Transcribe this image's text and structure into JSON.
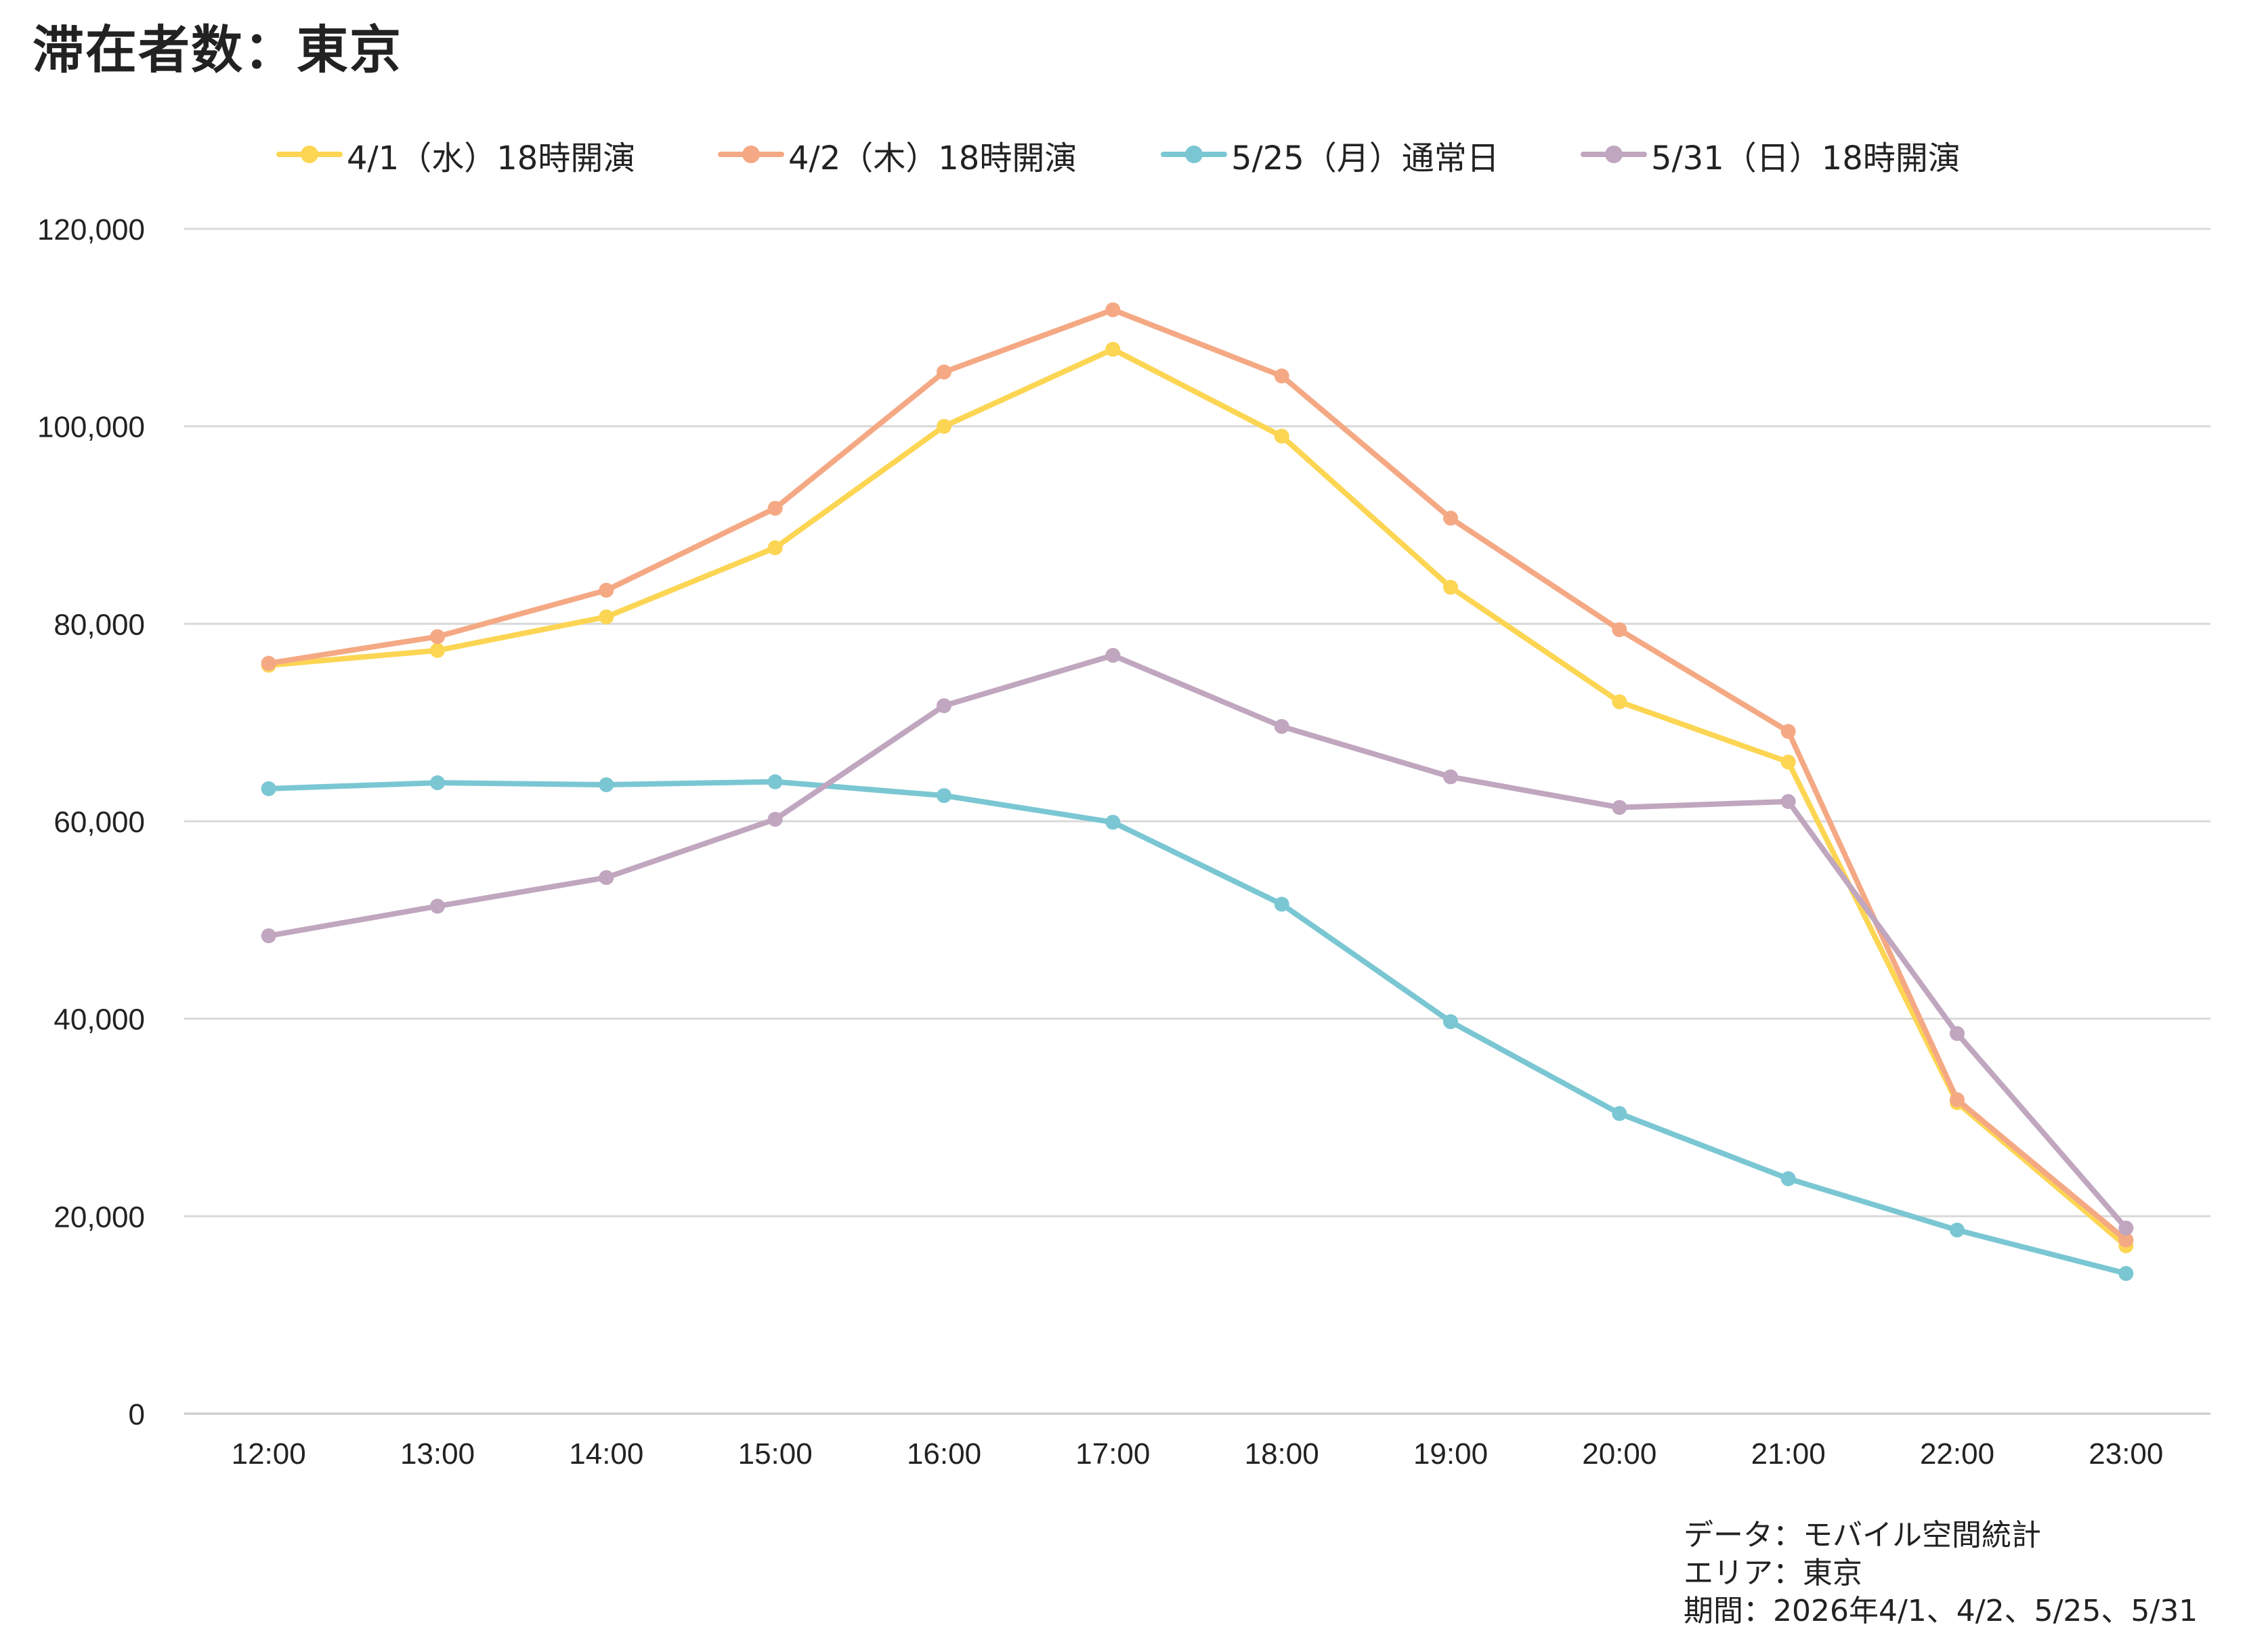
{
  "title": "滞在者数：東京",
  "notes": [
    "データ：モバイル空間統計",
    "エリア：東京",
    "期間：2026年4/1、4/2、5/25、5/31"
  ],
  "chart_data": {
    "type": "line",
    "title": "滞在者数：東京",
    "xlabel": "",
    "ylabel": "",
    "ylim": [
      0,
      120000
    ],
    "yticks": [
      0,
      20000,
      40000,
      60000,
      80000,
      100000,
      120000
    ],
    "ytick_labels": [
      "0",
      "20,000",
      "40,000",
      "60,000",
      "80,000",
      "100,000",
      "120,000"
    ],
    "grid": true,
    "legend_position": "top",
    "categories": [
      "12:00",
      "13:00",
      "14:00",
      "15:00",
      "16:00",
      "17:00",
      "18:00",
      "19:00",
      "20:00",
      "21:00",
      "22:00",
      "23:00"
    ],
    "series": [
      {
        "name": "4/1（水）18時開演",
        "color": "#FCD553",
        "values": [
          75800,
          77300,
          80700,
          87700,
          100000,
          107800,
          99000,
          83700,
          72100,
          66000,
          31500,
          17000
        ]
      },
      {
        "name": "4/2（木）18時開演",
        "color": "#F4A984",
        "values": [
          76000,
          78700,
          83400,
          91700,
          105500,
          111800,
          105100,
          90700,
          79400,
          69100,
          31800,
          17600
        ]
      },
      {
        "name": "5/25（月）通常日",
        "color": "#7AC7D3",
        "values": [
          63300,
          63900,
          63700,
          64000,
          62600,
          59900,
          51600,
          39700,
          30400,
          23800,
          18600,
          14200
        ]
      },
      {
        "name": "5/31（日）18時開演",
        "color": "#C0A6BE",
        "values": [
          48400,
          51400,
          54300,
          60200,
          71700,
          76800,
          69600,
          64500,
          61400,
          62000,
          38500,
          18800
        ]
      }
    ]
  }
}
